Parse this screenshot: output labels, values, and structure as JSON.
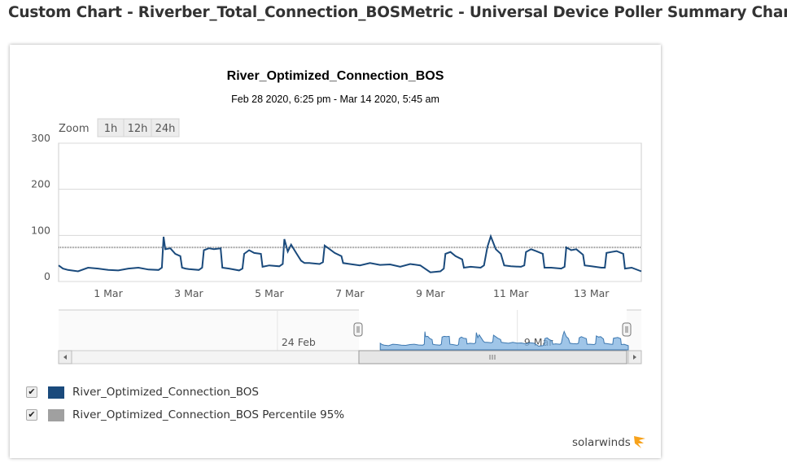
{
  "page": {
    "title": "Custom Chart - Riverber_Total_Connection_BOSMetric - Universal Device Poller Summary Chart"
  },
  "zoom": {
    "label": "Zoom",
    "buttons": [
      "1h",
      "12h",
      "24h"
    ]
  },
  "legend": [
    {
      "label": "River_Optimized_Connection_BOS",
      "color": "#1a4a7c",
      "checked": true
    },
    {
      "label": "River_Optimized_Connection_BOS Percentile 95%",
      "color": "#a0a0a0",
      "checked": true
    }
  ],
  "logo": {
    "text": "solarwinds",
    "color": "#f7a21b"
  },
  "chart_data": {
    "type": "line",
    "title": "River_Optimized_Connection_BOS",
    "subtitle": "Feb 28 2020, 6:25 pm - Mar 14 2020, 5:45 am",
    "xlim": [
      "2020-02-28 18:25",
      "2020-03-14 05:45"
    ],
    "ylim": [
      0,
      300
    ],
    "yticks": [
      0,
      100,
      200,
      300
    ],
    "xticks": [
      {
        "date": "2020-03-01",
        "label": "1 Mar"
      },
      {
        "date": "2020-03-03",
        "label": "3 Mar"
      },
      {
        "date": "2020-03-05",
        "label": "5 Mar"
      },
      {
        "date": "2020-03-07",
        "label": "7 Mar"
      },
      {
        "date": "2020-03-09",
        "label": "9 Mar"
      },
      {
        "date": "2020-03-11",
        "label": "11 Mar"
      },
      {
        "date": "2020-03-13",
        "label": "13 Mar"
      }
    ],
    "grid": true,
    "percentile_95": 74,
    "series": [
      {
        "name": "River_Optimized_Connection_BOS",
        "color": "#1a4a7c",
        "points": [
          [
            "2020-02-28 18:25",
            35
          ],
          [
            "2020-02-28 21:00",
            28
          ],
          [
            "2020-02-29 00:00",
            25
          ],
          [
            "2020-02-29 06:00",
            22
          ],
          [
            "2020-02-29 12:00",
            30
          ],
          [
            "2020-02-29 18:00",
            28
          ],
          [
            "2020-03-01 00:00",
            25
          ],
          [
            "2020-03-01 06:00",
            24
          ],
          [
            "2020-03-01 12:00",
            28
          ],
          [
            "2020-03-01 18:00",
            30
          ],
          [
            "2020-03-02 00:00",
            26
          ],
          [
            "2020-03-02 06:00",
            25
          ],
          [
            "2020-03-02 08:00",
            30
          ],
          [
            "2020-03-02 09:00",
            97
          ],
          [
            "2020-03-02 10:00",
            70
          ],
          [
            "2020-03-02 13:00",
            72
          ],
          [
            "2020-03-02 16:00",
            60
          ],
          [
            "2020-03-02 19:00",
            55
          ],
          [
            "2020-03-02 20:00",
            30
          ],
          [
            "2020-03-02 22:00",
            28
          ],
          [
            "2020-03-03 00:00",
            27
          ],
          [
            "2020-03-03 06:00",
            25
          ],
          [
            "2020-03-03 08:00",
            30
          ],
          [
            "2020-03-03 09:00",
            68
          ],
          [
            "2020-03-03 12:00",
            72
          ],
          [
            "2020-03-03 15:00",
            70
          ],
          [
            "2020-03-03 19:00",
            72
          ],
          [
            "2020-03-03 20:00",
            30
          ],
          [
            "2020-03-04 00:00",
            28
          ],
          [
            "2020-03-04 06:00",
            24
          ],
          [
            "2020-03-04 08:00",
            28
          ],
          [
            "2020-03-04 09:00",
            60
          ],
          [
            "2020-03-04 12:00",
            68
          ],
          [
            "2020-03-04 15:00",
            62
          ],
          [
            "2020-03-04 19:00",
            60
          ],
          [
            "2020-03-04 20:00",
            32
          ],
          [
            "2020-03-05 00:00",
            35
          ],
          [
            "2020-03-05 06:00",
            33
          ],
          [
            "2020-03-05 08:00",
            38
          ],
          [
            "2020-03-05 09:00",
            92
          ],
          [
            "2020-03-05 11:00",
            65
          ],
          [
            "2020-03-05 13:00",
            80
          ],
          [
            "2020-03-05 16:00",
            62
          ],
          [
            "2020-03-05 19:00",
            45
          ],
          [
            "2020-03-05 21:00",
            40
          ],
          [
            "2020-03-06 00:00",
            40
          ],
          [
            "2020-03-06 06:00",
            38
          ],
          [
            "2020-03-06 08:00",
            42
          ],
          [
            "2020-03-06 09:00",
            78
          ],
          [
            "2020-03-06 12:00",
            70
          ],
          [
            "2020-03-06 15:00",
            62
          ],
          [
            "2020-03-06 19:00",
            55
          ],
          [
            "2020-03-06 20:00",
            40
          ],
          [
            "2020-03-07 00:00",
            38
          ],
          [
            "2020-03-07 06:00",
            35
          ],
          [
            "2020-03-07 12:00",
            40
          ],
          [
            "2020-03-07 18:00",
            36
          ],
          [
            "2020-03-08 00:00",
            37
          ],
          [
            "2020-03-08 06:00",
            32
          ],
          [
            "2020-03-08 12:00",
            38
          ],
          [
            "2020-03-08 18:00",
            35
          ],
          [
            "2020-03-09 00:00",
            20
          ],
          [
            "2020-03-09 06:00",
            22
          ],
          [
            "2020-03-09 08:00",
            28
          ],
          [
            "2020-03-09 09:00",
            60
          ],
          [
            "2020-03-09 12:00",
            64
          ],
          [
            "2020-03-09 15:00",
            55
          ],
          [
            "2020-03-09 19:00",
            48
          ],
          [
            "2020-03-09 20:00",
            30
          ],
          [
            "2020-03-10 00:00",
            32
          ],
          [
            "2020-03-10 06:00",
            30
          ],
          [
            "2020-03-10 08:00",
            35
          ],
          [
            "2020-03-10 10:00",
            75
          ],
          [
            "2020-03-10 12:00",
            98
          ],
          [
            "2020-03-10 15:00",
            70
          ],
          [
            "2020-03-10 18:00",
            60
          ],
          [
            "2020-03-10 20:00",
            35
          ],
          [
            "2020-03-11 00:00",
            33
          ],
          [
            "2020-03-11 06:00",
            32
          ],
          [
            "2020-03-11 08:00",
            35
          ],
          [
            "2020-03-11 09:00",
            64
          ],
          [
            "2020-03-11 12:00",
            70
          ],
          [
            "2020-03-11 15:00",
            66
          ],
          [
            "2020-03-11 19:00",
            60
          ],
          [
            "2020-03-11 20:00",
            30
          ],
          [
            "2020-03-12 00:00",
            30
          ],
          [
            "2020-03-12 06:00",
            28
          ],
          [
            "2020-03-12 08:00",
            32
          ],
          [
            "2020-03-12 09:00",
            74
          ],
          [
            "2020-03-12 12:00",
            68
          ],
          [
            "2020-03-12 15:00",
            70
          ],
          [
            "2020-03-12 19:00",
            58
          ],
          [
            "2020-03-12 20:00",
            35
          ],
          [
            "2020-03-13 00:00",
            33
          ],
          [
            "2020-03-13 06:00",
            30
          ],
          [
            "2020-03-13 08:00",
            30
          ],
          [
            "2020-03-13 09:00",
            62
          ],
          [
            "2020-03-13 12:00",
            64
          ],
          [
            "2020-03-13 15:00",
            66
          ],
          [
            "2020-03-13 19:00",
            60
          ],
          [
            "2020-03-13 20:00",
            28
          ],
          [
            "2020-03-14 00:00",
            30
          ],
          [
            "2020-03-14 05:45",
            22
          ]
        ]
      }
    ],
    "navigator": {
      "xlim": [
        "2020-02-10 00:00",
        "2020-03-15 00:00"
      ],
      "xticks": [
        {
          "date": "2020-02-24",
          "label": "24 Feb"
        },
        {
          "date": "2020-03-09",
          "label": "9 Mar"
        }
      ],
      "fill_color": "#7fb2e0"
    }
  }
}
